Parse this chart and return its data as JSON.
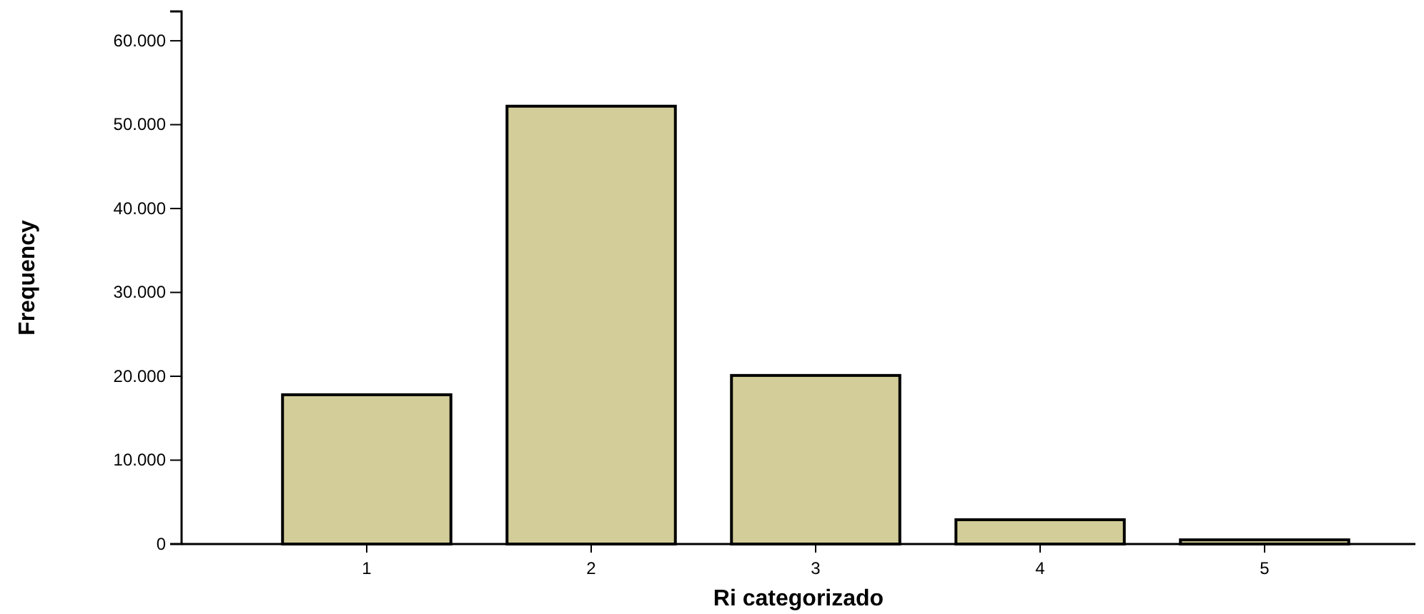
{
  "chart_data": {
    "type": "bar",
    "xlabel": "Ri categorizado",
    "ylabel": "Frequency",
    "categories": [
      "1",
      "2",
      "3",
      "4",
      "5"
    ],
    "values": [
      17800,
      52200,
      20100,
      2900,
      500
    ],
    "color": "#d3ce99",
    "ylim": [
      0,
      63500
    ],
    "yticks": [
      {
        "value": 0,
        "label": "0"
      },
      {
        "value": 10000,
        "label": "10.000"
      },
      {
        "value": 20000,
        "label": "20.000"
      },
      {
        "value": 30000,
        "label": "30.000"
      },
      {
        "value": 40000,
        "label": "40.000"
      },
      {
        "value": 50000,
        "label": "50.000"
      },
      {
        "value": 60000,
        "label": "60.000"
      }
    ]
  }
}
